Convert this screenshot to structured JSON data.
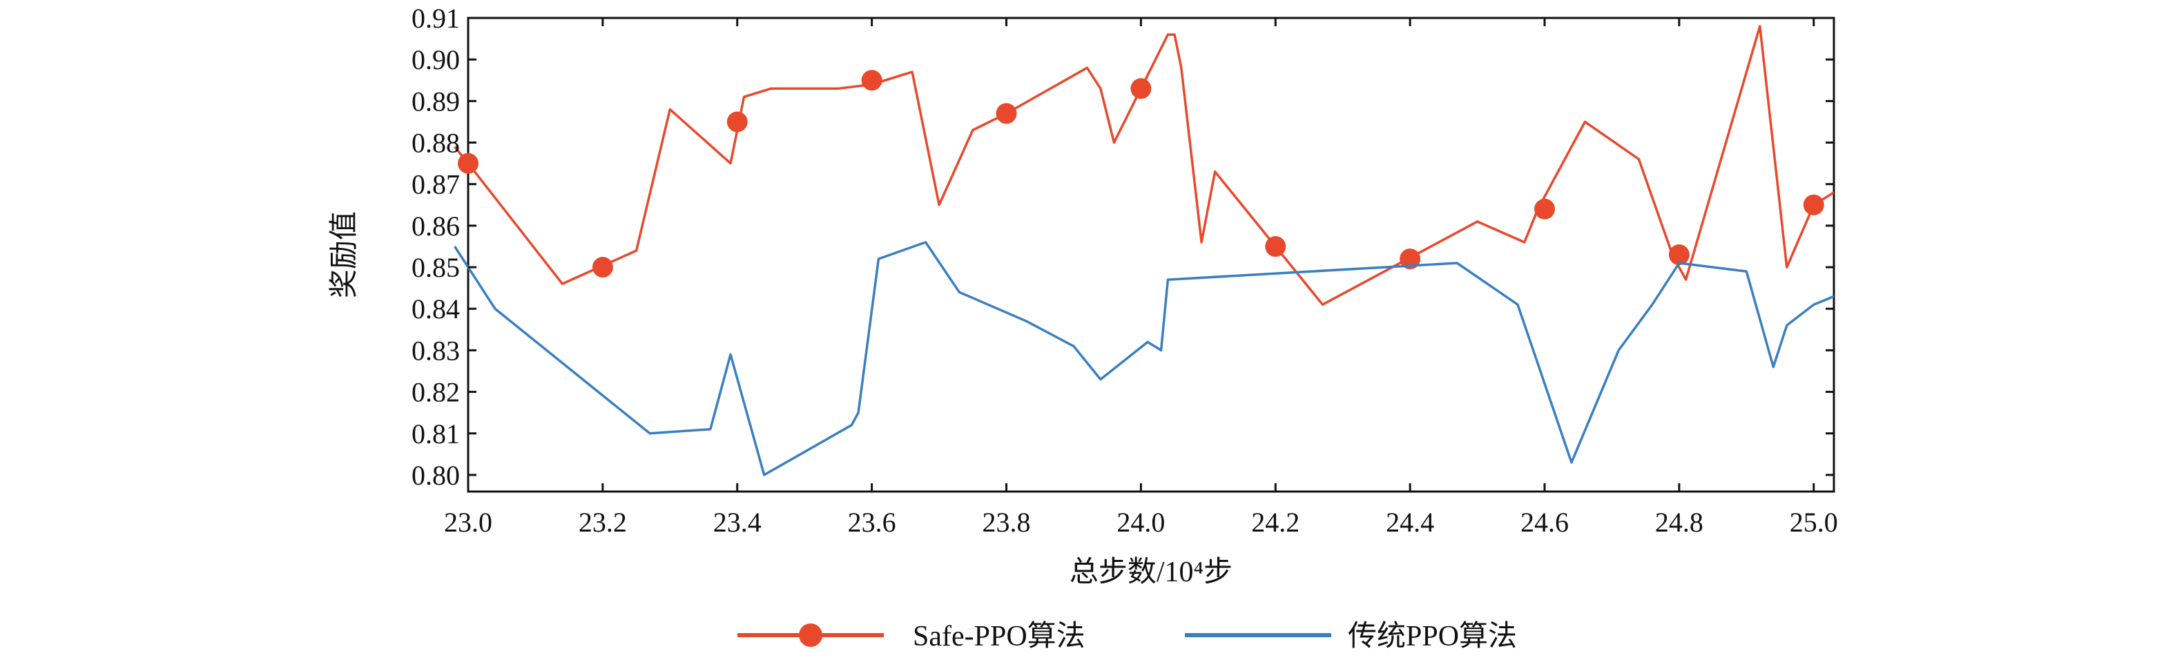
{
  "chart_data": {
    "type": "line",
    "xlabel": "总步数/10⁴步",
    "ylabel": "奖励值",
    "xlim": [
      23.0,
      25.03
    ],
    "ylim": [
      0.796,
      0.91
    ],
    "x_ticks": [
      23.0,
      23.2,
      23.4,
      23.6,
      23.8,
      24.0,
      24.2,
      24.4,
      24.6,
      24.8,
      25.0
    ],
    "x_tick_labels": [
      "23.0",
      "23.2",
      "23.4",
      "23.6",
      "23.8",
      "24.0",
      "24.2",
      "24.4",
      "24.6",
      "24.8",
      "25.0"
    ],
    "y_ticks": [
      0.8,
      0.81,
      0.82,
      0.83,
      0.84,
      0.85,
      0.86,
      0.87,
      0.88,
      0.89,
      0.9,
      0.91
    ],
    "y_tick_labels": [
      "0.80",
      "0.81",
      "0.82",
      "0.83",
      "0.84",
      "0.85",
      "0.86",
      "0.87",
      "0.88",
      "0.89",
      "0.90",
      "0.91"
    ],
    "grid": false,
    "legend_position": "bottom",
    "series": [
      {
        "name": "Safe-PPO算法",
        "color": "#e8492c",
        "marker": "circle",
        "x": [
          22.98,
          23.0,
          23.14,
          23.25,
          23.3,
          23.39,
          23.41,
          23.45,
          23.55,
          23.6,
          23.64,
          23.66,
          23.7,
          23.75,
          23.8,
          23.92,
          23.94,
          23.96,
          24.0,
          24.04,
          24.05,
          24.06,
          24.09,
          24.11,
          24.27,
          24.5,
          24.57,
          24.59,
          24.66,
          24.74,
          24.79,
          24.81,
          24.92,
          24.96,
          25.0,
          25.03
        ],
        "y": [
          0.879,
          0.875,
          0.846,
          0.854,
          0.888,
          0.875,
          0.891,
          0.893,
          0.893,
          0.894,
          0.896,
          0.897,
          0.865,
          0.883,
          0.887,
          0.898,
          0.893,
          0.88,
          0.893,
          0.906,
          0.906,
          0.898,
          0.856,
          0.873,
          0.841,
          0.861,
          0.856,
          0.864,
          0.885,
          0.876,
          0.853,
          0.847,
          0.908,
          0.85,
          0.865,
          0.868
        ],
        "marker_x": [
          23.0,
          23.2,
          23.4,
          23.6,
          23.8,
          24.0,
          24.2,
          24.4,
          24.6,
          24.8,
          25.0
        ],
        "marker_y": [
          0.875,
          0.85,
          0.885,
          0.895,
          0.887,
          0.893,
          0.855,
          0.852,
          0.864,
          0.853,
          0.865
        ]
      },
      {
        "name": "传统PPO算法",
        "color": "#3a7fc1",
        "marker": "none",
        "x": [
          22.98,
          23.04,
          23.27,
          23.36,
          23.39,
          23.44,
          23.57,
          23.58,
          23.61,
          23.68,
          23.73,
          23.83,
          23.9,
          23.94,
          24.01,
          24.03,
          24.04,
          24.47,
          24.56,
          24.64,
          24.71,
          24.76,
          24.8,
          24.9,
          24.94,
          24.96,
          25.0,
          25.03
        ],
        "y": [
          0.855,
          0.84,
          0.81,
          0.811,
          0.829,
          0.8,
          0.812,
          0.815,
          0.852,
          0.856,
          0.844,
          0.837,
          0.831,
          0.823,
          0.832,
          0.83,
          0.847,
          0.851,
          0.841,
          0.803,
          0.83,
          0.841,
          0.851,
          0.849,
          0.826,
          0.836,
          0.841,
          0.843
        ]
      }
    ]
  }
}
